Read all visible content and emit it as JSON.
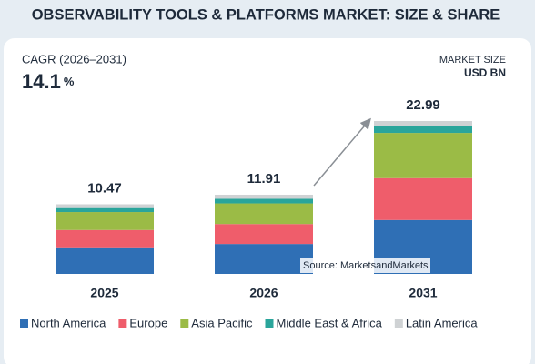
{
  "chart_data": {
    "type": "stacked_bar",
    "title": "OBSERVABILITY TOOLS & PLATFORMS MARKET: SIZE & SHARE",
    "cagr_label": "CAGR (2026–2031)",
    "cagr_value": "14.1",
    "cagr_unit": "%",
    "unit_line1": "MARKET SIZE",
    "unit_line2": "USD BN",
    "source": "Source: MarketsandMarkets",
    "categories": [
      "2025",
      "2026",
      "2031"
    ],
    "totals": [
      10.47,
      11.91,
      22.99
    ],
    "series": [
      {
        "name": "North America",
        "color": "#2f6fb5",
        "values": [
          4.0,
          4.5,
          8.1
        ]
      },
      {
        "name": "Europe",
        "color": "#ef5d6b",
        "values": [
          2.6,
          3.0,
          6.3
        ]
      },
      {
        "name": "Asia Pacific",
        "color": "#9bbb46",
        "values": [
          2.7,
          3.1,
          6.8
        ]
      },
      {
        "name": "Middle East & Africa",
        "color": "#2aa59b",
        "values": [
          0.6,
          0.7,
          1.1
        ]
      },
      {
        "name": "Latin America",
        "color": "#cfd2d4",
        "values": [
          0.57,
          0.61,
          0.69
        ]
      }
    ]
  }
}
